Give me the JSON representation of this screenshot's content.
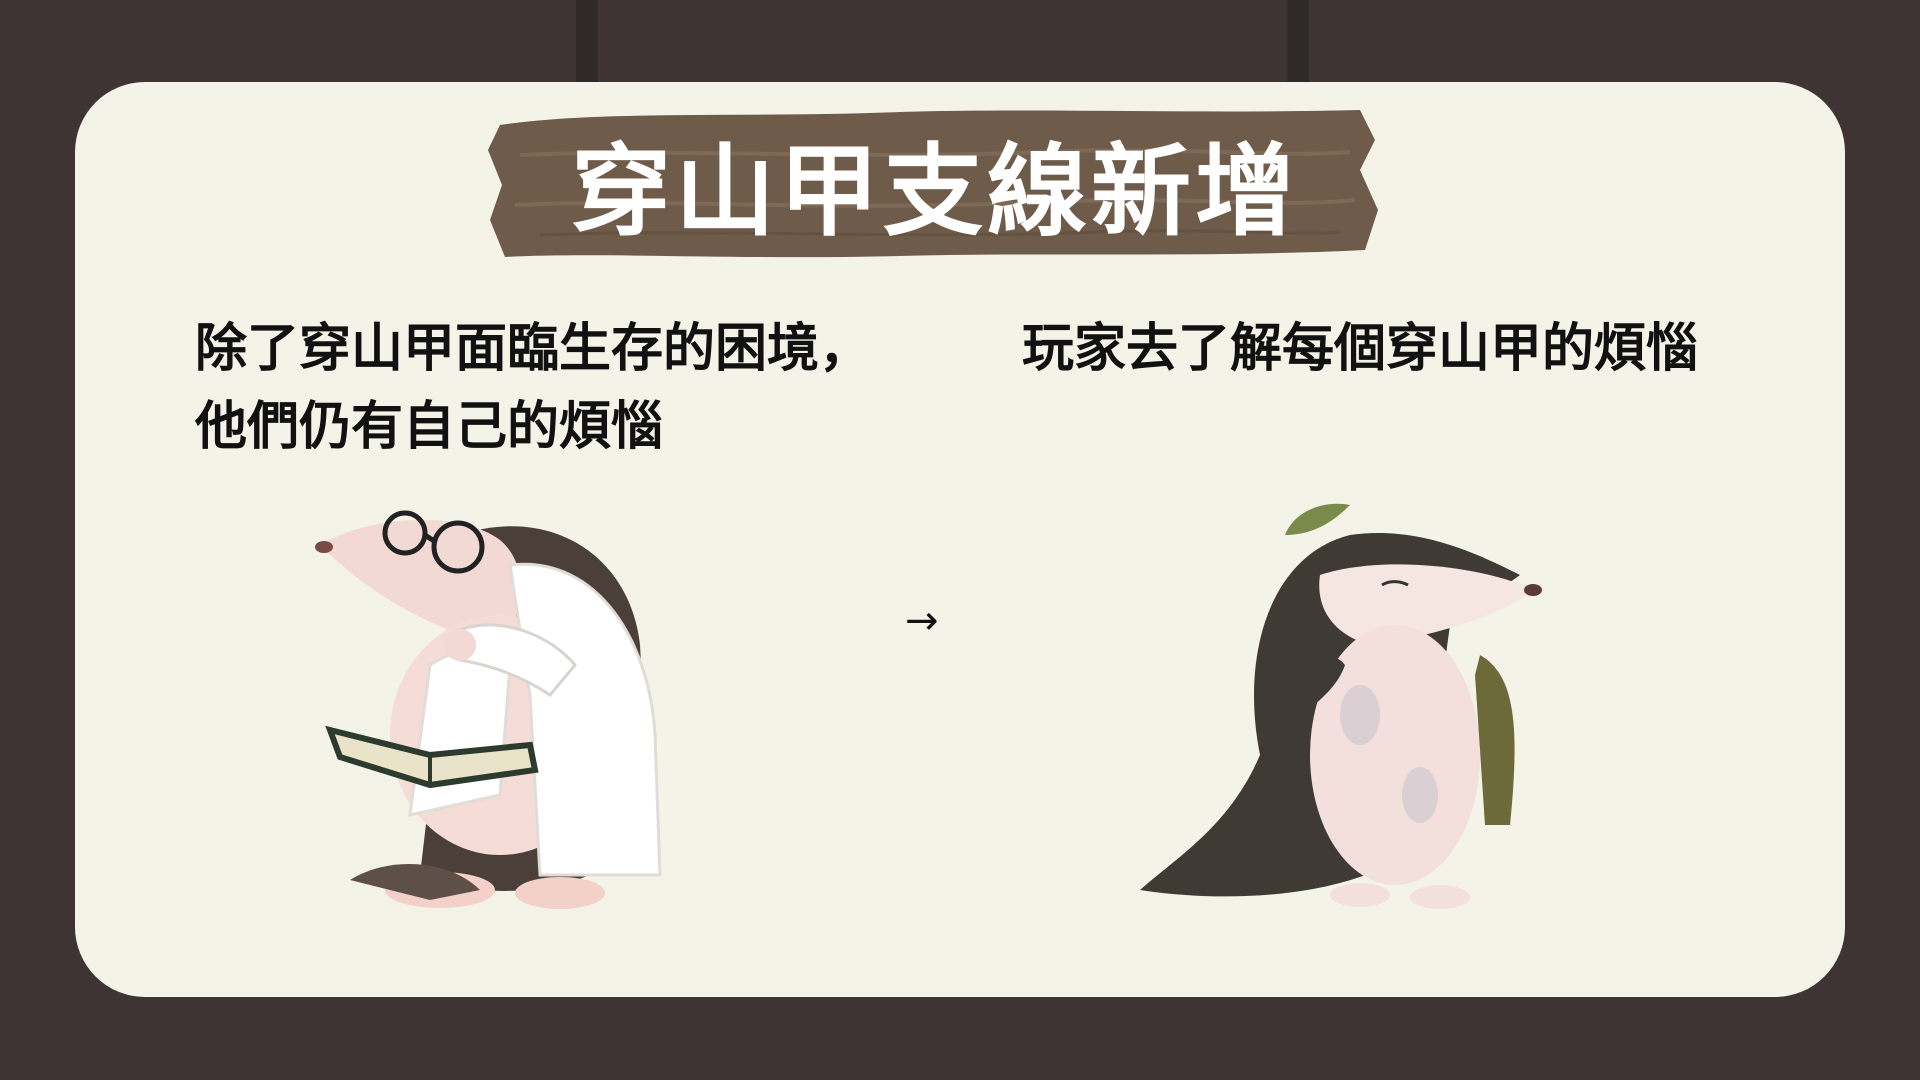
{
  "slide": {
    "title": "穿山甲支線新增",
    "left_caption": "除了穿山甲面臨生存的困境，他們仍有自己的煩惱",
    "right_caption": "玩家去了解每個穿山甲的煩惱",
    "arrow": "→"
  },
  "illustrations": {
    "left": "pangolin-scientist-reading-book",
    "right": "pangolin-with-leaf-and-backpack"
  },
  "colors": {
    "background": "#3d3433",
    "card": "#f4f3e8",
    "sign_wood": "#6f5b49",
    "sign_text": "#ffffff",
    "text": "#111111"
  }
}
